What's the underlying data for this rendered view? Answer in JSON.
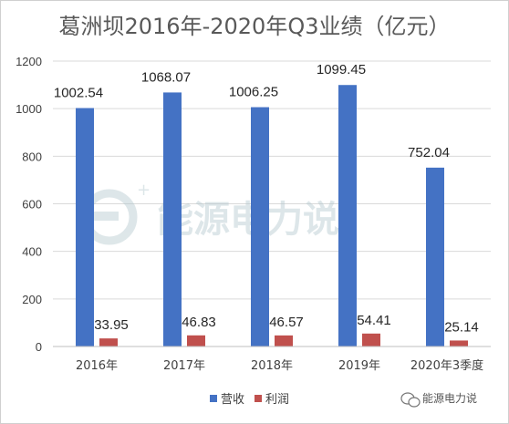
{
  "watermark": {
    "main_text": "能源电力说",
    "corner_text": "能源电力说"
  },
  "colors": {
    "revenue": "#4472C4",
    "profit": "#C0504D"
  },
  "chart_data": {
    "type": "bar",
    "title": "葛洲坝2016年-2020年Q3业绩（亿元）",
    "categories": [
      "2016年",
      "2017年",
      "2018年",
      "2019年",
      "2020年3季度"
    ],
    "series": [
      {
        "name": "营收",
        "values": [
          1002.54,
          1068.07,
          1006.25,
          1099.45,
          752.04
        ],
        "labels": [
          "1002.54",
          "1068.07",
          "1006.25",
          "1099.45",
          "752.04"
        ]
      },
      {
        "name": "利润",
        "values": [
          33.95,
          46.83,
          46.57,
          54.41,
          25.14
        ],
        "labels": [
          "33.95",
          "46.83",
          "46.57",
          "54.41",
          "25.14"
        ]
      }
    ],
    "ylim": [
      0,
      1200
    ],
    "yticks": [
      "0",
      "200",
      "400",
      "600",
      "800",
      "1000",
      "1200"
    ],
    "grid": true,
    "legend_position": "bottom"
  }
}
